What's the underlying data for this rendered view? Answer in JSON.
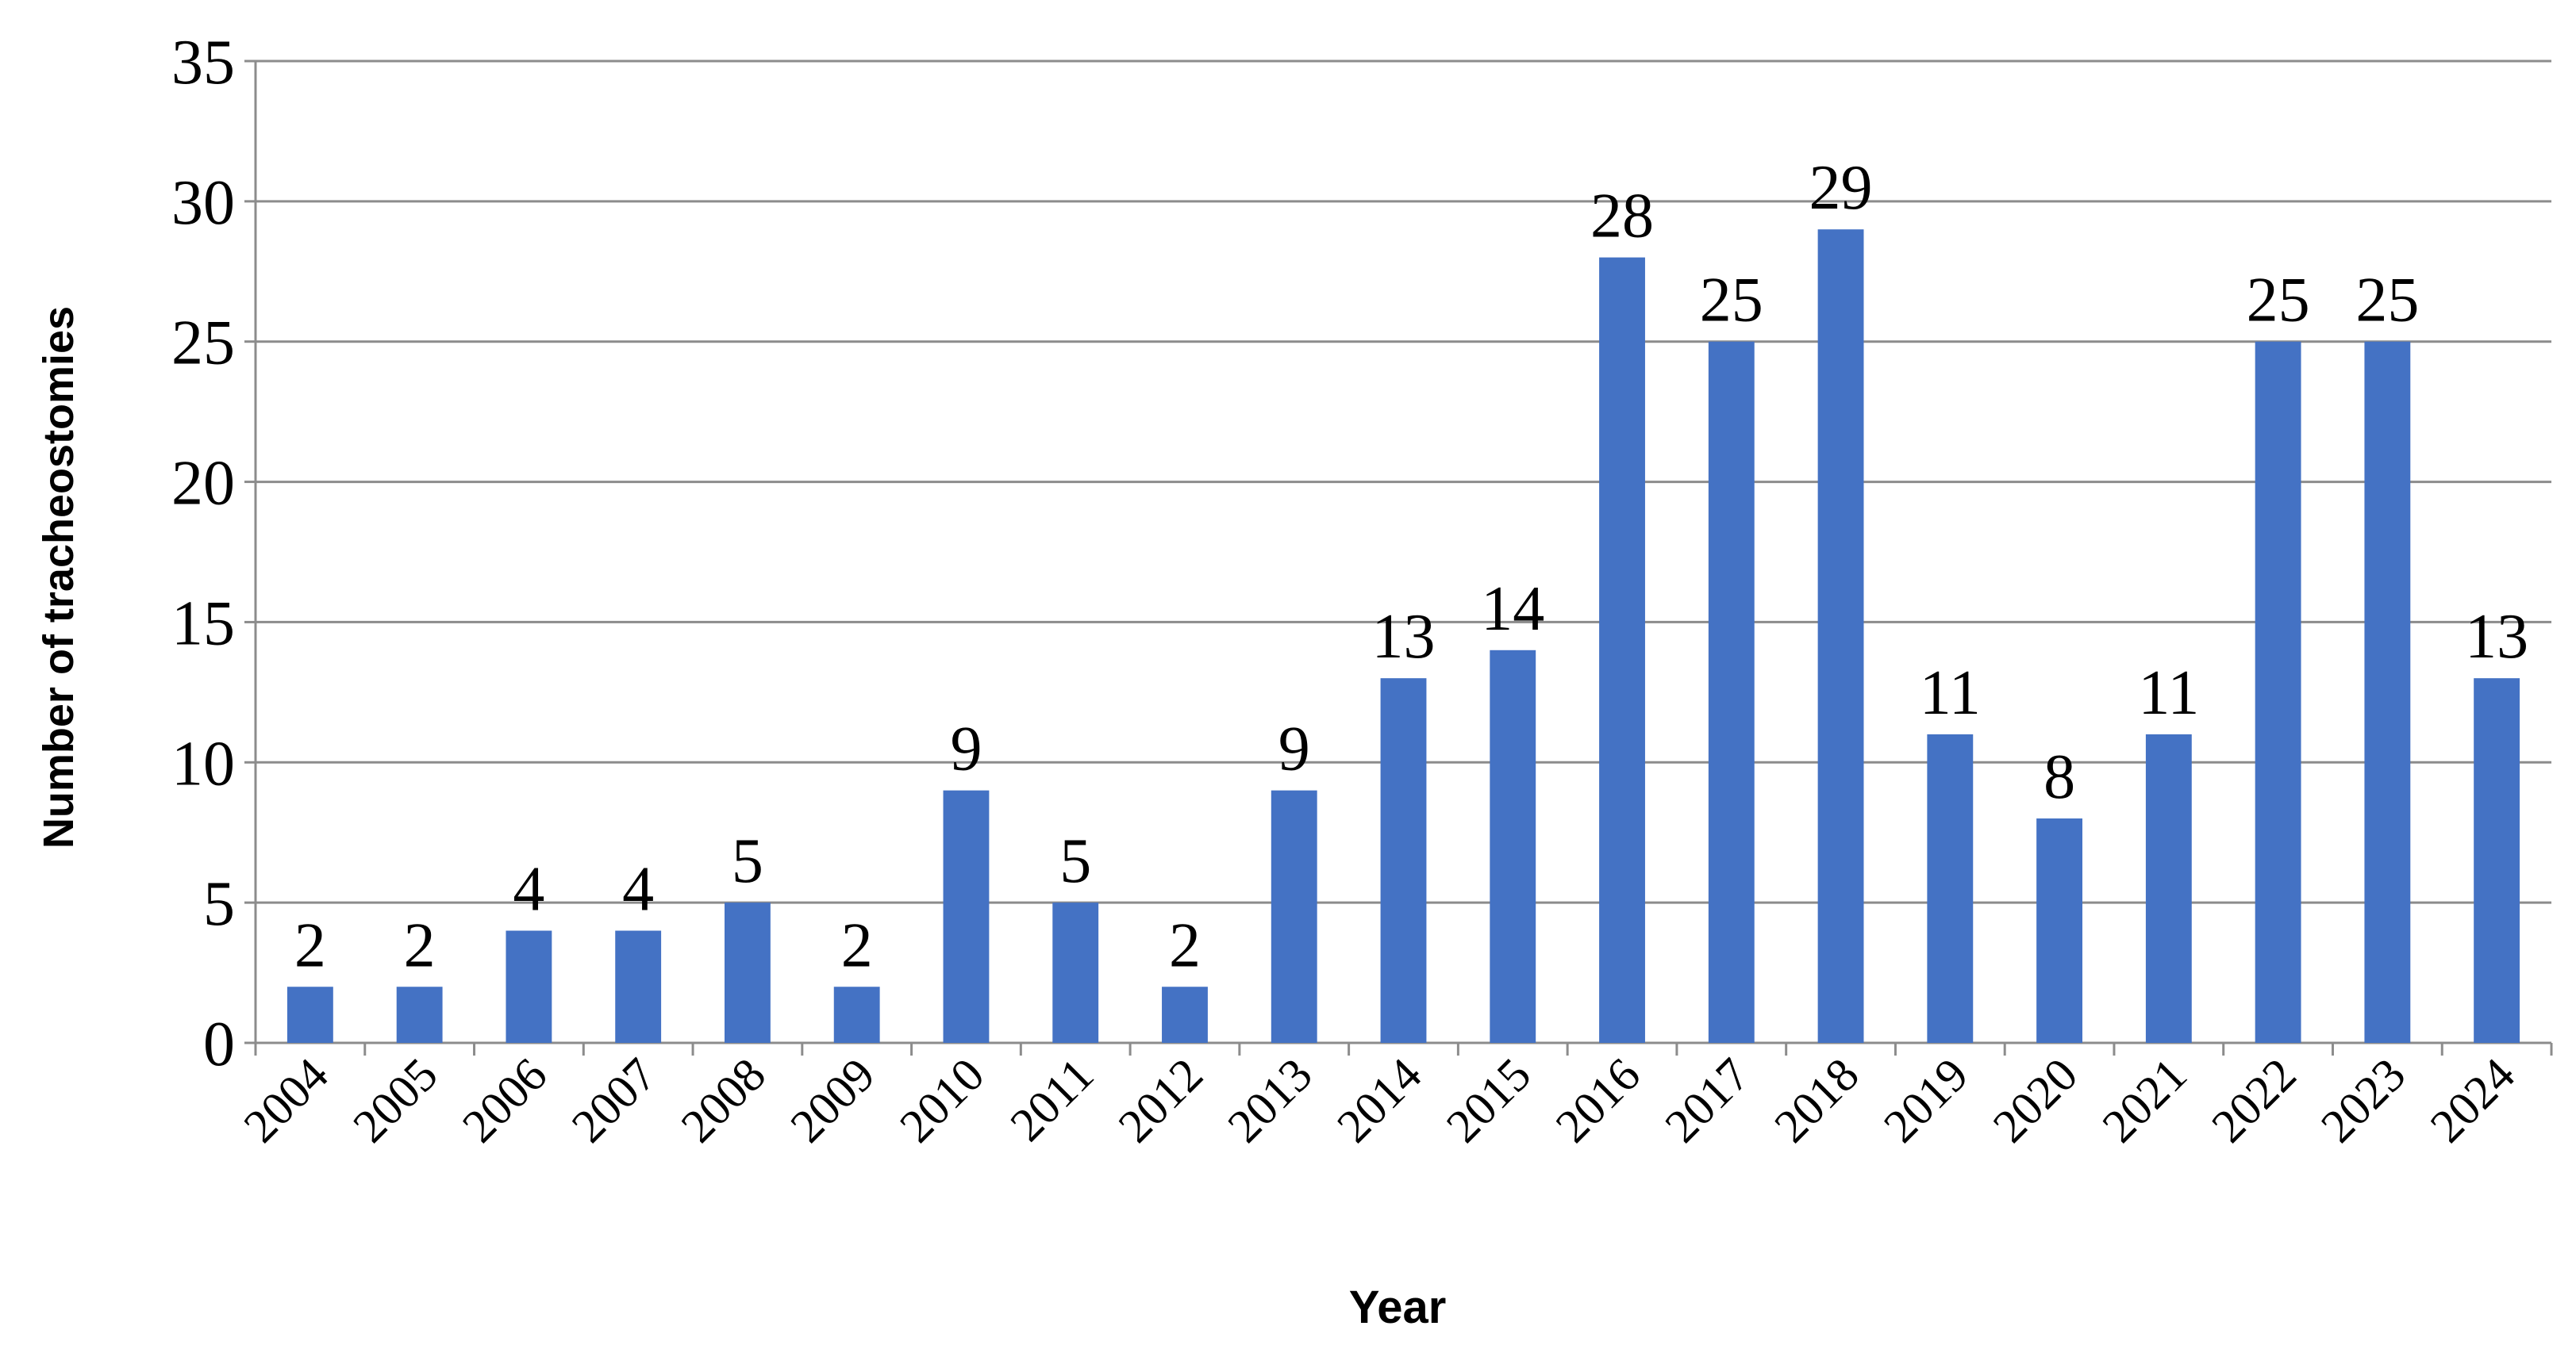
{
  "chart_data": {
    "type": "bar",
    "xlabel": "Year",
    "ylabel": "Number of tracheostomies",
    "categories": [
      "2004",
      "2005",
      "2006",
      "2007",
      "2008",
      "2009",
      "2010",
      "2011",
      "2012",
      "2013",
      "2014",
      "2015",
      "2016",
      "2017",
      "2018",
      "2019",
      "2020",
      "2021",
      "2022",
      "2023",
      "2024"
    ],
    "values": [
      2,
      2,
      4,
      4,
      5,
      2,
      9,
      5,
      2,
      9,
      13,
      14,
      28,
      25,
      29,
      11,
      8,
      11,
      25,
      25,
      13
    ],
    "color": "#4472c4",
    "ylim": [
      0,
      35
    ],
    "yticks": [
      0,
      5,
      10,
      15,
      20,
      25,
      30,
      35
    ],
    "grid": true
  }
}
